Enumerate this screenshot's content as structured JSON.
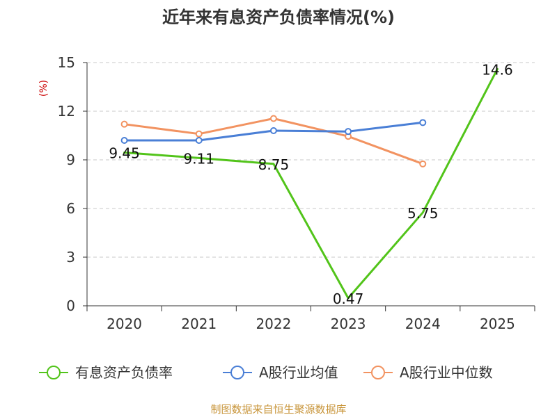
{
  "chart_data": {
    "type": "line",
    "title": "近年来有息资产负债率情况(%)",
    "unit_label": "(%)",
    "categories": [
      "2020",
      "2021",
      "2022",
      "2023",
      "2024",
      "2025"
    ],
    "ylim": [
      0,
      15
    ],
    "yticks": [
      "0",
      "3",
      "6",
      "9",
      "12",
      "15"
    ],
    "grid": true,
    "legend_position": "bottom",
    "series": [
      {
        "name": "有息资产负债率",
        "color": "#52c41a",
        "values": [
          9.45,
          9.11,
          8.75,
          0.47,
          5.75,
          14.6
        ],
        "labels": [
          "9.45",
          "9.11",
          "8.75",
          "0.47",
          "5.75",
          "14.6"
        ],
        "show_labels": true,
        "show_markers": false
      },
      {
        "name": "A股行业均值",
        "color": "#4a7fd6",
        "values": [
          10.2,
          10.2,
          10.8,
          10.75,
          11.3,
          null
        ],
        "show_labels": false,
        "show_markers": true
      },
      {
        "name": "A股行业中位数",
        "color": "#f29361",
        "values": [
          11.2,
          10.6,
          11.55,
          10.45,
          8.75,
          null
        ],
        "show_labels": false,
        "show_markers": true
      }
    ],
    "source": "制图数据来自恒生聚源数据库"
  }
}
